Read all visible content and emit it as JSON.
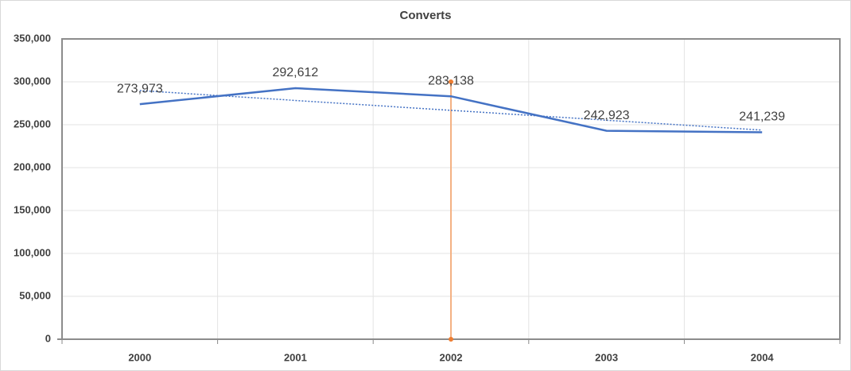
{
  "chart_data": {
    "type": "line",
    "title": "Converts",
    "categories": [
      "2000",
      "2001",
      "2002",
      "2003",
      "2004"
    ],
    "series": [
      {
        "name": "Converts",
        "color": "#4472c4",
        "values": [
          273973,
          292612,
          283138,
          242923,
          241239
        ],
        "value_labels": [
          "273,973",
          "292,612",
          "283,138",
          "242,923",
          "241,239"
        ]
      }
    ],
    "ylim": [
      0,
      350000
    ],
    "yticks": [
      {
        "value": 0,
        "label": "0"
      },
      {
        "value": 50000,
        "label": "50,000"
      },
      {
        "value": 100000,
        "label": "100,000"
      },
      {
        "value": 150000,
        "label": "150,000"
      },
      {
        "value": 200000,
        "label": "200,000"
      },
      {
        "value": 250000,
        "label": "250,000"
      },
      {
        "value": 300000,
        "label": "300,000"
      },
      {
        "value": 350000,
        "label": "350,000"
      }
    ],
    "grid": true,
    "trendline": true,
    "drop_line": {
      "category_index": 2,
      "from": 0,
      "to": 300000,
      "color": "#f4b183",
      "marker_color": "#ed7d31"
    }
  }
}
